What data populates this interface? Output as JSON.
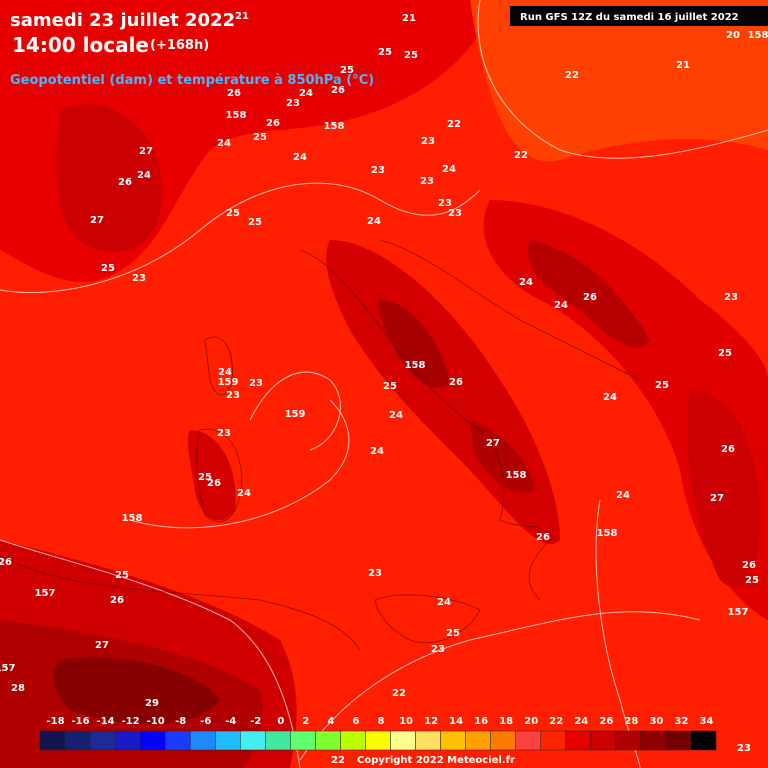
{
  "header": {
    "title": "samedi 23 juillet 2022",
    "time": "14:00 locale",
    "lead": "(+168h)",
    "subtitle": "Geopotentiel (dam) et température à 850hPa (°C)",
    "run": "Run GFS 12Z du samedi 16 juillet 2022"
  },
  "legend": {
    "labels": [
      "-18",
      "-16",
      "-14",
      "-12",
      "-10",
      "-8",
      "-6",
      "-4",
      "-2",
      "0",
      "2",
      "4",
      "6",
      "8",
      "10",
      "12",
      "14",
      "16",
      "18",
      "20",
      "22",
      "24",
      "26",
      "28",
      "30",
      "32",
      "34"
    ],
    "colors": [
      "#141450",
      "#1a2070",
      "#1e2a98",
      "#1a1ac8",
      "#0000ff",
      "#1a3cff",
      "#1e88ff",
      "#20bcff",
      "#40f0f0",
      "#40e8a0",
      "#60ff70",
      "#80ff30",
      "#b8ff00",
      "#ffff00",
      "#ffff90",
      "#ffe060",
      "#ffc000",
      "#ffa000",
      "#ff7a00",
      "#ff4040",
      "#ff2400",
      "#e80000",
      "#cc0000",
      "#b00000",
      "#900000",
      "#700000",
      "#000000"
    ]
  },
  "map": {
    "labels": [
      "21",
      "21",
      "25",
      "25",
      "22",
      "21",
      "158",
      "20",
      "26",
      "23",
      "24",
      "26",
      "25",
      "158",
      "26",
      "25",
      "158",
      "22",
      "23",
      "22",
      "24",
      "24",
      "23",
      "24",
      "23",
      "23",
      "23",
      "27",
      "26",
      "24",
      "27",
      "25",
      "25",
      "24",
      "25",
      "23",
      "24",
      "24",
      "26",
      "23",
      "158",
      "25",
      "26",
      "24",
      "25",
      "24",
      "25",
      "24",
      "159",
      "23",
      "23",
      "159",
      "24",
      "27",
      "158",
      "26",
      "23",
      "25",
      "26",
      "24",
      "24",
      "27",
      "158",
      "158",
      "26",
      "26",
      "25",
      "23",
      "26",
      "25",
      "157",
      "26",
      "157",
      "24",
      "27",
      "25",
      "23",
      "157",
      "28",
      "29",
      "22",
      "23",
      "22"
    ]
  },
  "footer": {
    "copyright": "Copyright 2022 Meteociel.fr"
  }
}
